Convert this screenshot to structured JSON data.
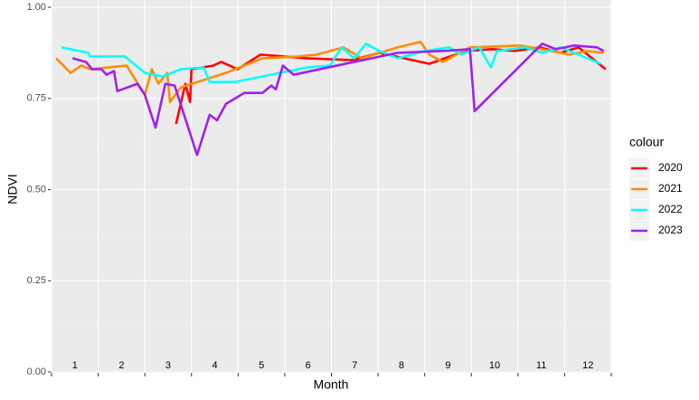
{
  "chart_data": {
    "type": "line",
    "x_label": "Month",
    "y_label": "NDVI",
    "legend_title": "colour",
    "xlim": [
      1,
      13
    ],
    "xticks": [
      1,
      2,
      3,
      4,
      5,
      6,
      7,
      8,
      9,
      10,
      11,
      12,
      13
    ],
    "month_labels": [
      "1",
      "2",
      "3",
      "4",
      "5",
      "6",
      "7",
      "8",
      "9",
      "10",
      "11",
      "12"
    ],
    "ylim": [
      0,
      1
    ],
    "yticks": [
      {
        "value": 0,
        "label": "0.00"
      },
      {
        "value": 0.25,
        "label": "0.25"
      },
      {
        "value": 0.5,
        "label": "0.50"
      },
      {
        "value": 0.75,
        "label": "0.75"
      },
      {
        "value": 1,
        "label": "1.00"
      }
    ],
    "grid": true,
    "legend": "right",
    "series": [
      {
        "name": "2020",
        "color": "#ff0000",
        "x": [
          3.67,
          3.87,
          3.97,
          4.0,
          4.47,
          4.64,
          4.99,
          5.48,
          6.48,
          7.45,
          8.03,
          9.1,
          9.87,
          10.45,
          10.93,
          11.47,
          11.91,
          12.3,
          12.88
        ],
        "values": [
          0.68,
          0.79,
          0.74,
          0.83,
          0.84,
          0.85,
          0.83,
          0.87,
          0.86,
          0.855,
          0.875,
          0.845,
          0.88,
          0.885,
          0.88,
          0.89,
          0.875,
          0.89,
          0.83
        ]
      },
      {
        "name": "2021",
        "color": "#ff8c00",
        "x": [
          1.1,
          1.41,
          1.64,
          1.83,
          2.61,
          3.0,
          3.15,
          3.29,
          3.48,
          3.54,
          3.77,
          4.74,
          5.52,
          6.29,
          6.68,
          7.26,
          7.65,
          8.42,
          8.91,
          9.1,
          9.39,
          9.97,
          11.04,
          11.72,
          12.1,
          12.49,
          12.84
        ],
        "values": [
          0.86,
          0.82,
          0.84,
          0.83,
          0.84,
          0.76,
          0.83,
          0.79,
          0.82,
          0.74,
          0.78,
          0.82,
          0.86,
          0.865,
          0.87,
          0.89,
          0.86,
          0.89,
          0.905,
          0.87,
          0.85,
          0.89,
          0.895,
          0.88,
          0.87,
          0.88,
          0.875
        ]
      },
      {
        "name": "2022",
        "color": "#00ffff",
        "x": [
          1.21,
          1.79,
          1.83,
          2.57,
          3.0,
          3.38,
          3.77,
          4.26,
          4.39,
          4.93,
          6.48,
          6.97,
          7.22,
          7.49,
          7.74,
          8.03,
          8.42,
          9.0,
          9.53,
          9.78,
          10.17,
          10.42,
          10.55,
          11.14,
          11.52,
          11.91,
          12.49,
          12.78
        ],
        "values": [
          0.89,
          0.875,
          0.865,
          0.865,
          0.82,
          0.81,
          0.83,
          0.835,
          0.795,
          0.795,
          0.835,
          0.84,
          0.89,
          0.86,
          0.9,
          0.88,
          0.86,
          0.88,
          0.89,
          0.87,
          0.89,
          0.835,
          0.88,
          0.89,
          0.875,
          0.89,
          0.86,
          0.845
        ]
      },
      {
        "name": "2023",
        "color": "#a020f0",
        "x": [
          1.45,
          1.74,
          1.87,
          2.07,
          2.18,
          2.34,
          2.41,
          2.84,
          3.0,
          3.23,
          3.44,
          3.64,
          4.12,
          4.39,
          4.55,
          4.74,
          5.13,
          5.52,
          5.71,
          5.81,
          5.96,
          6.19,
          8.42,
          9.39,
          9.97,
          10.07,
          11.52,
          11.81,
          12.2,
          12.69,
          12.84
        ],
        "values": [
          0.86,
          0.85,
          0.83,
          0.83,
          0.815,
          0.825,
          0.77,
          0.79,
          0.76,
          0.67,
          0.79,
          0.785,
          0.595,
          0.705,
          0.69,
          0.735,
          0.765,
          0.765,
          0.785,
          0.775,
          0.84,
          0.815,
          0.875,
          0.88,
          0.885,
          0.715,
          0.9,
          0.885,
          0.895,
          0.89,
          0.88
        ]
      }
    ]
  }
}
